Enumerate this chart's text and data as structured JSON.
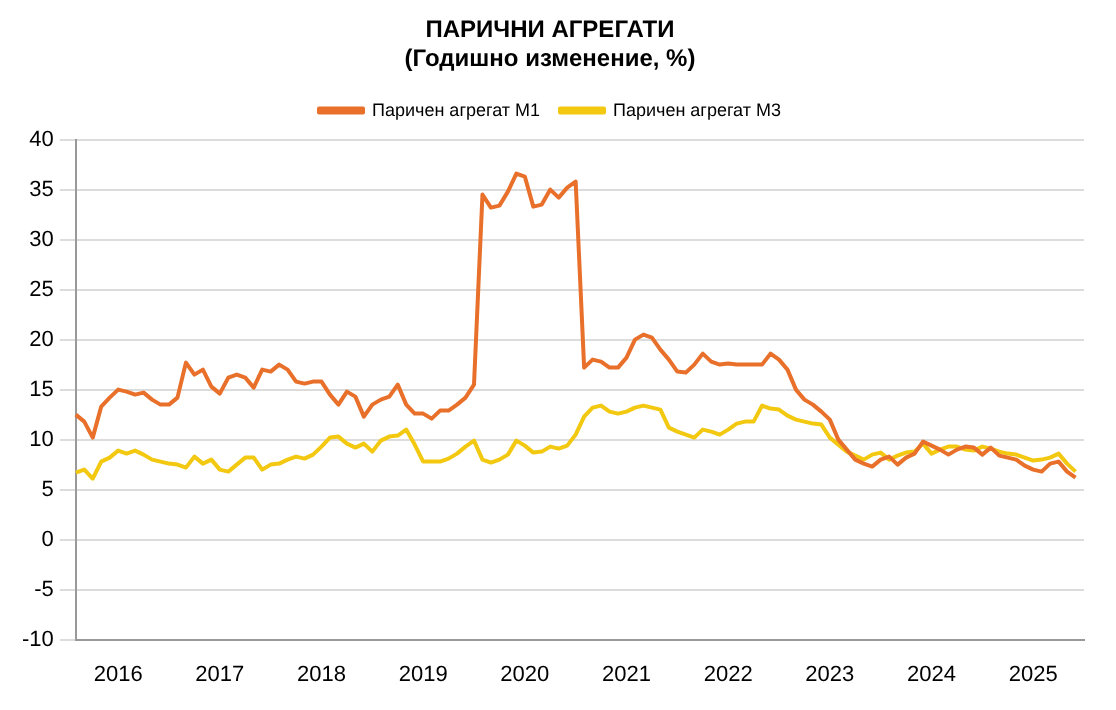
{
  "chart_data": {
    "type": "line",
    "title": "ПАРИЧНИ АГРЕГАТИ",
    "subtitle": "(Годишно изменение, %)",
    "categories": [
      null,
      null,
      null,
      null,
      null,
      "2016",
      null,
      null,
      null,
      null,
      null,
      null,
      null,
      null,
      null,
      null,
      null,
      "2017",
      null,
      null,
      null,
      null,
      null,
      null,
      null,
      null,
      null,
      null,
      null,
      "2018",
      null,
      null,
      null,
      null,
      null,
      null,
      null,
      null,
      null,
      null,
      null,
      "2019",
      null,
      null,
      null,
      null,
      null,
      null,
      null,
      null,
      null,
      null,
      null,
      "2020",
      null,
      null,
      null,
      null,
      null,
      null,
      null,
      null,
      null,
      null,
      null,
      "2021",
      null,
      null,
      null,
      null,
      null,
      null,
      null,
      null,
      null,
      null,
      null,
      "2022",
      null,
      null,
      null,
      null,
      null,
      null,
      null,
      null,
      null,
      null,
      null,
      "2023",
      null,
      null,
      null,
      null,
      null,
      null,
      null,
      null,
      null,
      null,
      null,
      "2024",
      null,
      null,
      null,
      null,
      null,
      null,
      null,
      null,
      null,
      null,
      null,
      "2025",
      null,
      null,
      null,
      null,
      null,
      null
    ],
    "series": [
      {
        "name": "Паричен агрегат М1",
        "color": "#e8702a",
        "values": [
          12.5,
          11.8,
          10.2,
          13.3,
          14.2,
          15,
          14.8,
          14.5,
          14.7,
          14,
          13.5,
          13.5,
          14.2,
          17.7,
          16.5,
          17,
          15.3,
          14.6,
          16.2,
          16.5,
          16.2,
          15.2,
          17,
          16.8,
          17.5,
          17,
          15.8,
          15.6,
          15.8,
          15.8,
          14.5,
          13.5,
          14.8,
          14.3,
          12.3,
          13.5,
          14,
          14.3,
          15.5,
          13.5,
          12.6,
          12.6,
          12.1,
          12.9,
          12.9,
          13.5,
          14.2,
          15.5,
          34.5,
          33.2,
          33.4,
          34.8,
          36.6,
          36.3,
          33.3,
          33.5,
          35,
          34.2,
          35.2,
          35.8,
          17.2,
          18,
          17.8,
          17.2,
          17.2,
          18.2,
          20,
          20.5,
          20.2,
          19,
          18,
          16.8,
          16.7,
          17.5,
          18.6,
          17.8,
          17.5,
          17.6,
          17.5,
          17.5,
          17.5,
          17.5,
          18.6,
          18,
          17,
          15,
          14,
          13.5,
          12.8,
          12,
          10,
          9,
          8,
          7.6,
          7.3,
          8,
          8.3,
          7.5,
          8.2,
          8.6,
          9.8,
          9.4,
          9,
          8.5,
          9,
          9.3,
          9.2,
          8.5,
          9.2,
          8.4,
          8.2,
          8,
          7.4,
          7,
          6.8,
          7.6,
          7.8,
          6.8,
          6.2,
          null
        ]
      },
      {
        "name": "Паричен агрегат М3",
        "color": "#f2c811",
        "values": [
          6.7,
          7,
          6.1,
          7.8,
          8.2,
          8.9,
          8.6,
          8.9,
          8.5,
          8,
          7.8,
          7.6,
          7.5,
          7.2,
          8.3,
          7.6,
          8,
          7,
          6.8,
          7.5,
          8.2,
          8.2,
          7,
          7.5,
          7.6,
          8,
          8.3,
          8.1,
          8.5,
          9.3,
          10.2,
          10.3,
          9.6,
          9.2,
          9.6,
          8.8,
          9.9,
          10.3,
          10.4,
          11,
          9.5,
          7.8,
          7.8,
          7.8,
          8.1,
          8.6,
          9.3,
          9.9,
          8,
          7.7,
          8,
          8.5,
          9.9,
          9.4,
          8.7,
          8.8,
          9.3,
          9.1,
          9.4,
          10.5,
          12.3,
          13.2,
          13.4,
          12.8,
          12.6,
          12.8,
          13.2,
          13.4,
          13.2,
          13,
          11.2,
          10.8,
          10.5,
          10.2,
          11,
          10.8,
          10.5,
          11,
          11.6,
          11.8,
          11.8,
          13.4,
          13.1,
          13,
          12.4,
          12,
          11.8,
          11.6,
          11.5,
          10.2,
          9.5,
          8.8,
          8.4,
          8,
          8.5,
          8.7,
          8,
          8.4,
          8.7,
          8.8,
          9.6,
          8.6,
          9,
          9.3,
          9.3,
          9,
          8.9,
          9.3,
          9.1,
          8.8,
          8.6,
          8.5,
          8.2,
          7.9,
          8,
          8.2,
          8.6,
          7.6,
          6.8,
          null
        ]
      }
    ],
    "ylim": [
      -10,
      40
    ],
    "yticks": [
      -10,
      -5,
      0,
      5,
      10,
      15,
      20,
      25,
      30,
      35,
      40
    ],
    "grid": "y",
    "legend": "top",
    "marker": "none",
    "line_style": "solid"
  }
}
